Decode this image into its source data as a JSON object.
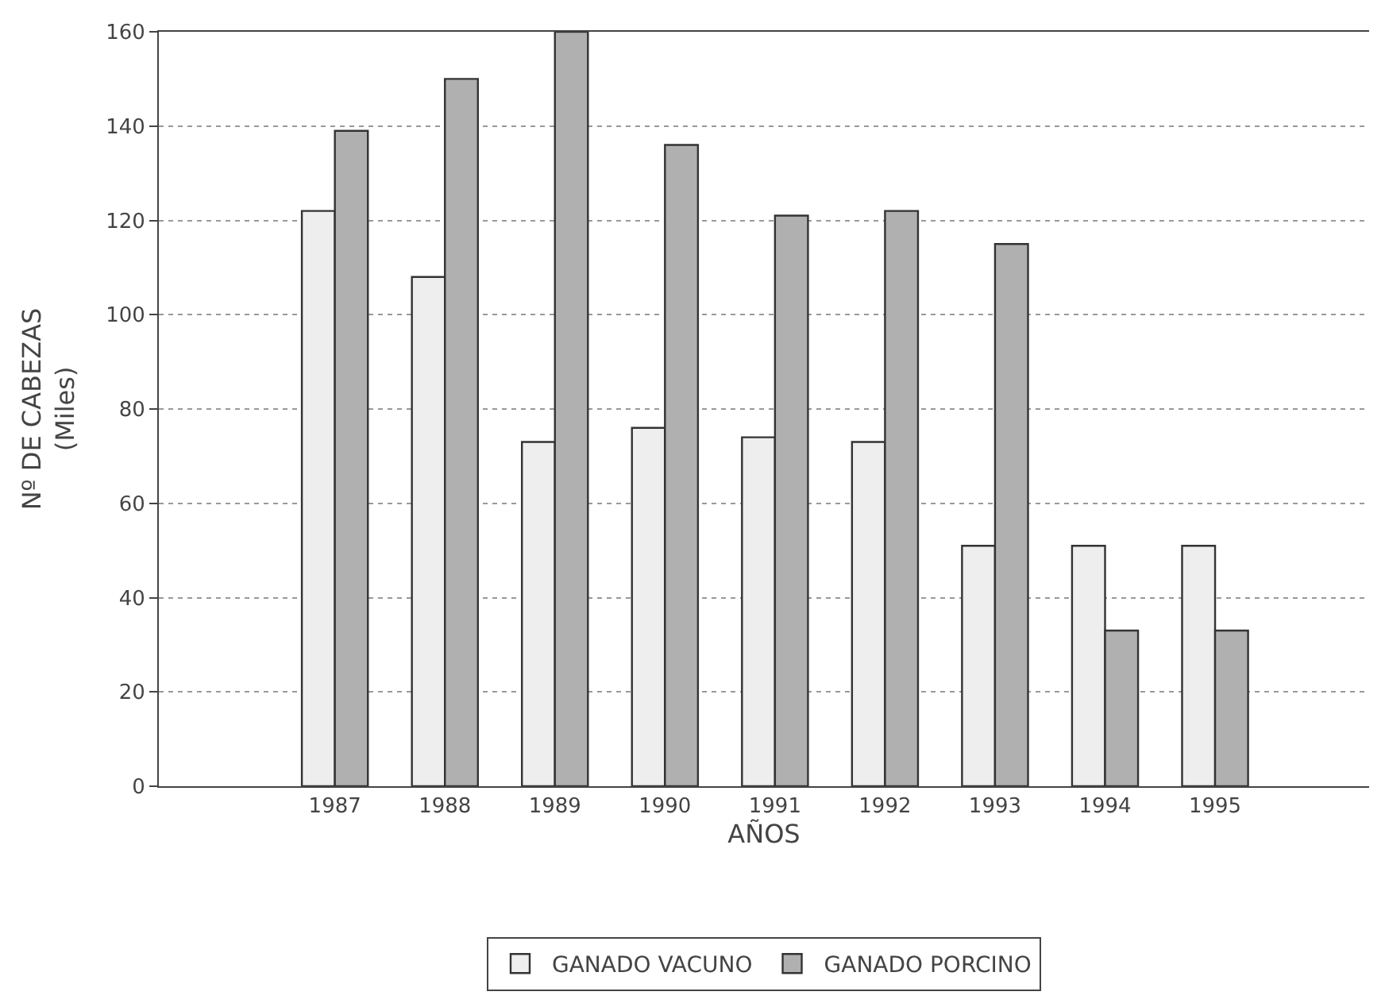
{
  "chart_data": {
    "type": "bar",
    "xlabel": "AÑOS",
    "ylabel": "Nº DE CABEZAS\n(Miles)",
    "categories": [
      "1987",
      "1988",
      "1989",
      "1990",
      "1991",
      "1992",
      "1993",
      "1994",
      "1995"
    ],
    "series": [
      {
        "name": "GANADO VACUNO",
        "color": "#eeeeee",
        "values": [
          122,
          108,
          73,
          76,
          74,
          73,
          51,
          51,
          51
        ]
      },
      {
        "name": "GANADO PORCINO",
        "color": "#b0b0b0",
        "values": [
          139,
          150,
          160,
          136,
          121,
          122,
          115,
          33,
          33
        ]
      }
    ],
    "ylim": [
      0,
      160
    ],
    "yticks": [
      0,
      20,
      40,
      60,
      80,
      100,
      120,
      140,
      160
    ],
    "grid": "y",
    "legend": "bottom"
  }
}
